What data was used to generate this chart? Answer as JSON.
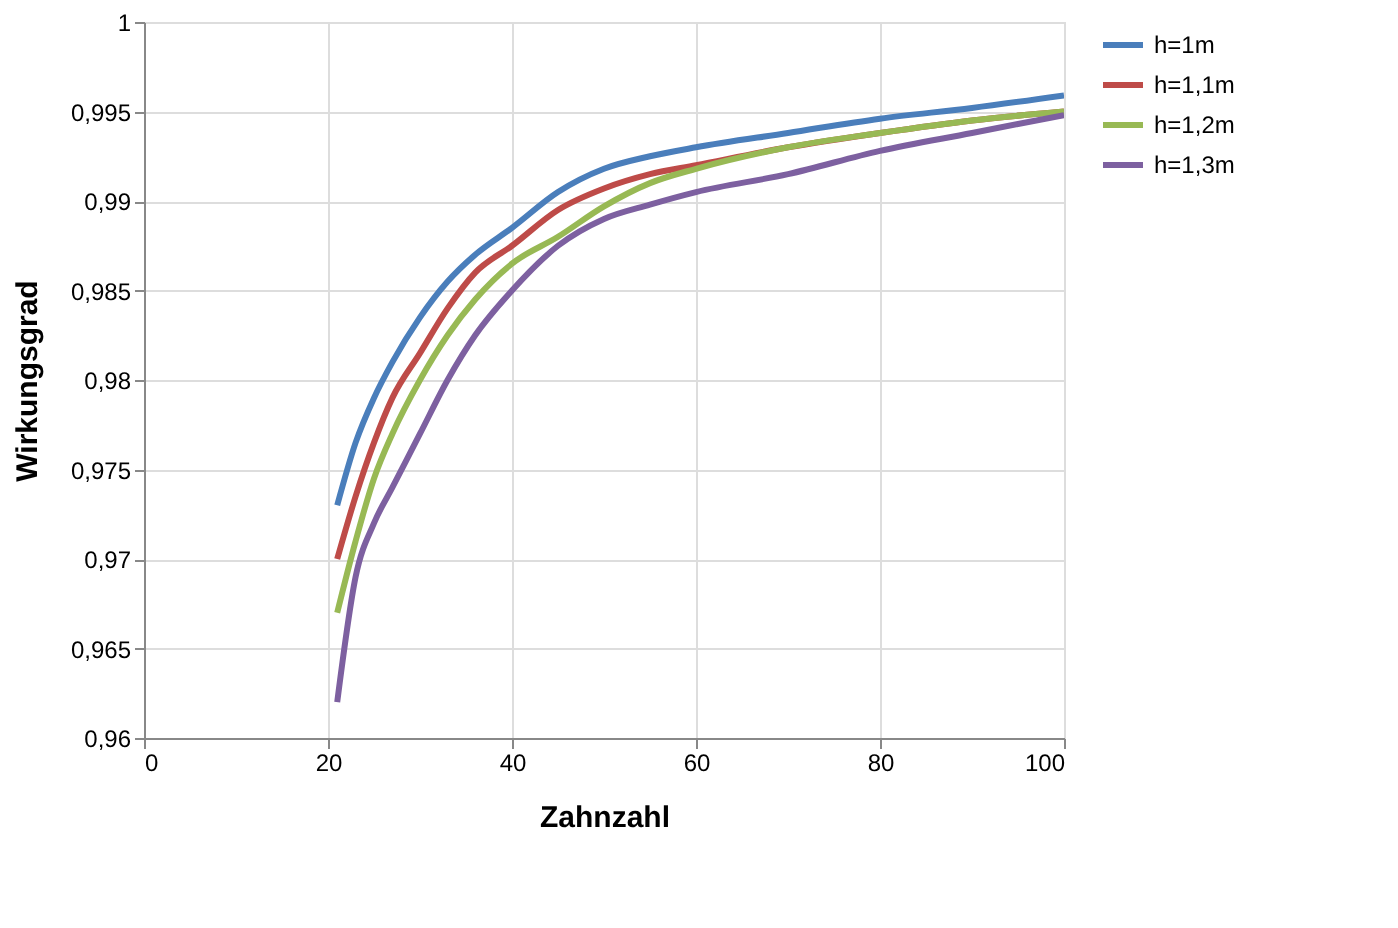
{
  "chart_data": {
    "type": "line",
    "xlabel": "Zahnzahl",
    "ylabel": "Wirkungsgrad",
    "xlim": [
      0,
      100
    ],
    "xticks": [
      0,
      20,
      40,
      60,
      80,
      100
    ],
    "ylim": [
      0.96,
      1
    ],
    "yticks": [
      {
        "value": 0.96,
        "label": "0,96"
      },
      {
        "value": 0.965,
        "label": "0,965"
      },
      {
        "value": 0.97,
        "label": "0,97"
      },
      {
        "value": 0.975,
        "label": "0,975"
      },
      {
        "value": 0.98,
        "label": "0,98"
      },
      {
        "value": 0.985,
        "label": "0,985"
      },
      {
        "value": 0.99,
        "label": "0,99"
      },
      {
        "value": 0.995,
        "label": "0,995"
      },
      {
        "value": 1,
        "label": "1"
      }
    ],
    "grid": true,
    "legend": "right",
    "marker": "none",
    "line_style": "solid",
    "x": [
      21,
      23,
      25,
      27,
      30,
      33,
      36,
      40,
      45,
      50,
      55,
      60,
      70,
      80,
      90,
      100
    ],
    "series": [
      {
        "name": "h=1m",
        "color": "#4a7ebb",
        "values": [
          0.973,
          0.9765,
          0.979,
          0.981,
          0.9835,
          0.9855,
          0.987,
          0.9885,
          0.9905,
          0.9918,
          0.9925,
          0.993,
          0.9938,
          0.9946,
          0.9952,
          0.9959
        ]
      },
      {
        "name": "h=1,1m",
        "color": "#be4b48",
        "values": [
          0.97,
          0.9735,
          0.9765,
          0.979,
          0.9815,
          0.984,
          0.986,
          0.9875,
          0.9895,
          0.9907,
          0.9915,
          0.992,
          0.993,
          0.9938,
          0.9945,
          0.995
        ]
      },
      {
        "name": "h=1,2m",
        "color": "#98b954",
        "values": [
          0.967,
          0.971,
          0.9745,
          0.977,
          0.98,
          0.9825,
          0.9845,
          0.9865,
          0.988,
          0.9897,
          0.991,
          0.9918,
          0.993,
          0.9938,
          0.9945,
          0.995
        ]
      },
      {
        "name": "h=1,3m",
        "color": "#7d60a0",
        "values": [
          0.962,
          0.969,
          0.972,
          0.974,
          0.977,
          0.98,
          0.9825,
          0.985,
          0.9875,
          0.989,
          0.9898,
          0.9905,
          0.9915,
          0.9928,
          0.9938,
          0.9948
        ]
      }
    ]
  }
}
